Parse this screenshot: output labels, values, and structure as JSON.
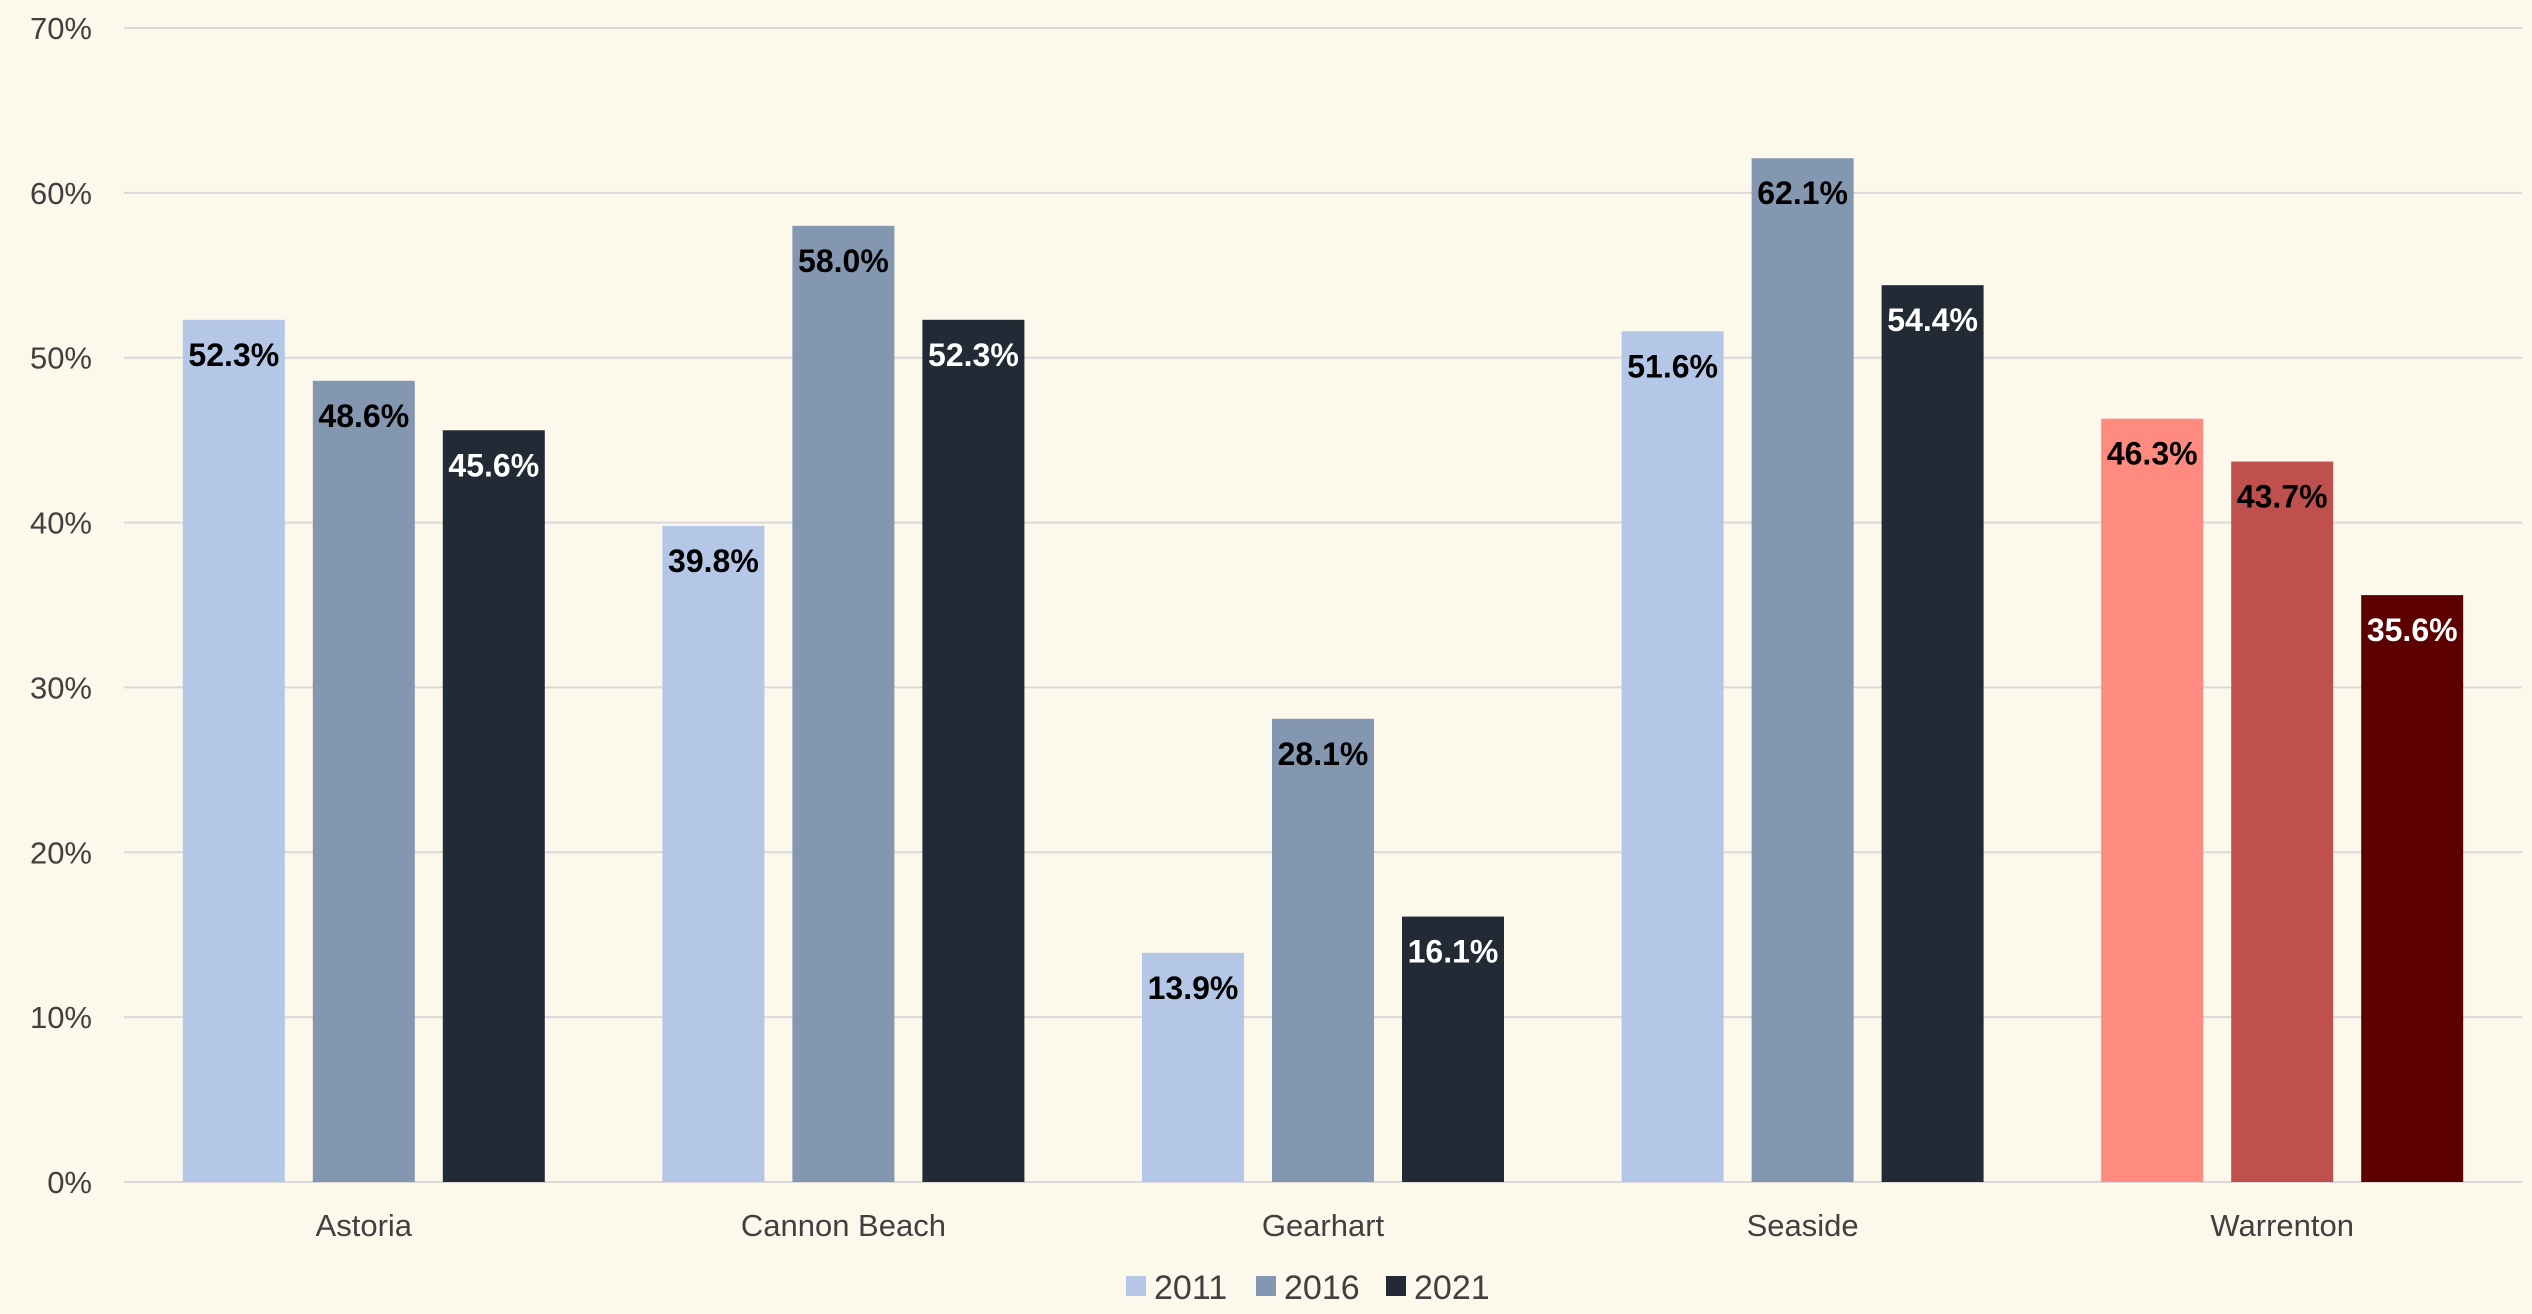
{
  "chart_data": {
    "type": "bar",
    "categories": [
      "Astoria",
      "Cannon Beach",
      "Gearhart",
      "Seaside",
      "Warrenton"
    ],
    "series": [
      {
        "name": "2011",
        "values": [
          52.3,
          39.8,
          13.9,
          51.6,
          46.3
        ]
      },
      {
        "name": "2016",
        "values": [
          48.6,
          58.0,
          28.1,
          62.1,
          43.7
        ]
      },
      {
        "name": "2021",
        "values": [
          45.6,
          52.3,
          16.1,
          54.4,
          35.6
        ]
      }
    ],
    "data_labels": [
      [
        "52.3%",
        "39.8%",
        "13.9%",
        "51.6%",
        "46.3%"
      ],
      [
        "48.6%",
        "58.0%",
        "28.1%",
        "62.1%",
        "43.7%"
      ],
      [
        "45.6%",
        "52.3%",
        "16.1%",
        "54.4%",
        "35.6%"
      ]
    ],
    "y_ticks": [
      "0%",
      "10%",
      "20%",
      "30%",
      "40%",
      "50%",
      "60%",
      "70%"
    ],
    "ylim": [
      0,
      70
    ],
    "title": "",
    "xlabel": "",
    "ylabel": "",
    "grid": true,
    "legend_position": "bottom",
    "colors": {
      "series": [
        "#b4c7e7",
        "#8497b0",
        "#222a35"
      ],
      "highlight_category": "Warrenton",
      "highlight_series": [
        "#ff8a80",
        "#c0504d",
        "#5c0000"
      ],
      "label_text": [
        "#000000",
        "#000000",
        "#ffffff"
      ],
      "highlight_label_text": [
        "#000000",
        "#000000",
        "#ffffff"
      ],
      "background": "#fdf8ec",
      "gridline": "#d9d9d9"
    }
  }
}
